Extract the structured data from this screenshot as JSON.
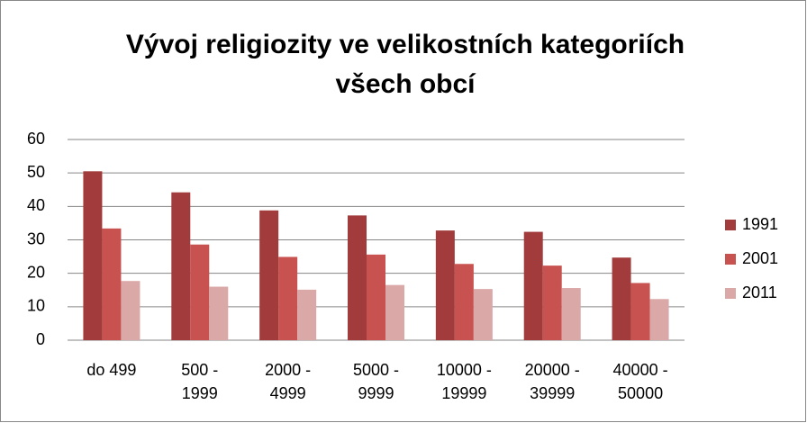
{
  "chart_data": {
    "type": "bar",
    "title": "Vývoj religiozity ve velikostních kategoriích všech obcí",
    "categories": [
      "do 499",
      "500 - 1999",
      "2000 - 4999",
      "5000 - 9999",
      "10000 - 19999",
      "20000 - 39999",
      "40000 - 50000"
    ],
    "series": [
      {
        "name": "1991",
        "color": "#a23c3c",
        "values": [
          50.5,
          44.2,
          38.8,
          37.3,
          32.8,
          32.4,
          24.7
        ]
      },
      {
        "name": "2001",
        "color": "#c8524f",
        "values": [
          33.4,
          28.6,
          24.9,
          25.6,
          22.8,
          22.3,
          17.1
        ]
      },
      {
        "name": "2011",
        "color": "#dba8a8",
        "values": [
          17.7,
          16.0,
          15.1,
          16.5,
          15.3,
          15.6,
          12.3
        ]
      }
    ],
    "ylim": [
      0,
      60
    ],
    "yticks": [
      0,
      10,
      20,
      30,
      40,
      50,
      60
    ],
    "grid": true,
    "legend": "right"
  }
}
